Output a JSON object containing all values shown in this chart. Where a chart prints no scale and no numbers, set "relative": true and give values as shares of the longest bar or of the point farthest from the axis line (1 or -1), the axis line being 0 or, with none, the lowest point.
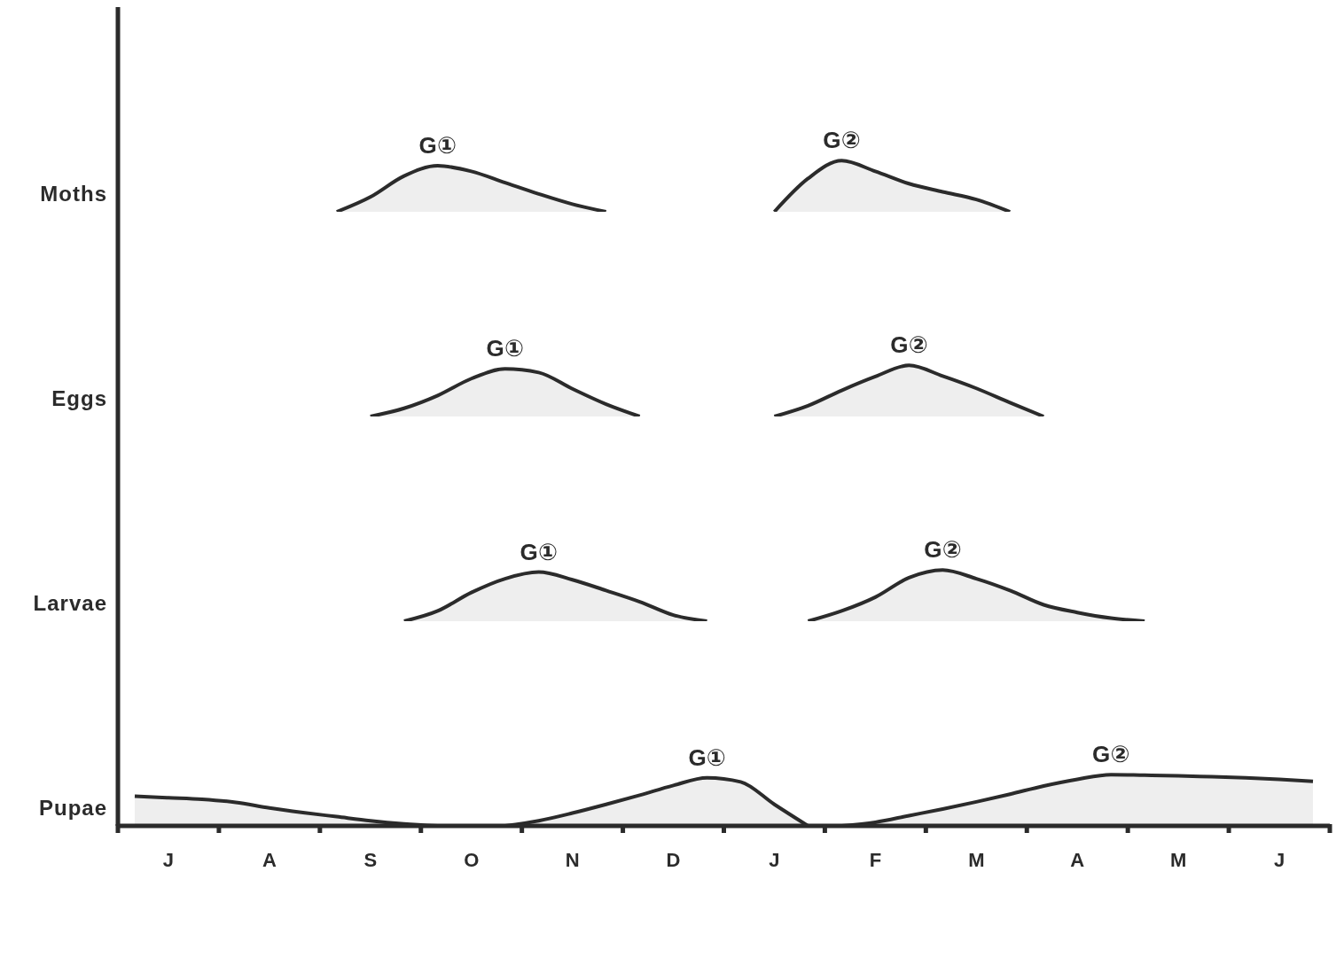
{
  "chart_data": [
    {
      "type": "area",
      "relative": true,
      "ylabel": "Moths",
      "tick_labels": false,
      "categories": [
        null,
        null,
        null,
        null,
        null,
        null,
        null,
        null,
        null,
        null,
        null,
        null,
        null,
        null,
        null,
        null,
        null,
        null,
        null,
        null,
        null,
        null,
        null,
        null,
        null,
        null,
        null,
        null,
        null,
        null,
        null,
        null,
        null,
        null,
        null,
        null
      ],
      "series": [
        {
          "color": "#2b2b2b",
          "values": [
            null,
            null,
            null,
            null,
            null,
            null,
            0,
            0.29,
            0.7,
            0.9,
            0.79,
            0.57,
            0.35,
            0.15,
            0,
            null,
            null,
            null,
            null,
            null,
            null,
            null,
            null,
            null,
            null,
            null,
            null,
            null,
            null,
            null,
            null,
            null,
            null,
            null,
            null,
            null
          ]
        },
        {
          "color": "#2b2b2b",
          "values": [
            null,
            null,
            null,
            null,
            null,
            null,
            null,
            null,
            null,
            null,
            null,
            null,
            null,
            null,
            null,
            null,
            null,
            null,
            null,
            0,
            0.65,
            1,
            0.79,
            0.55,
            0.39,
            0.24,
            0,
            null,
            null,
            null,
            null,
            null,
            null,
            null,
            null,
            null
          ]
        }
      ],
      "annotations": [
        "G①",
        "G②"
      ]
    },
    {
      "type": "area",
      "relative": true,
      "ylabel": "Eggs",
      "tick_labels": false,
      "categories": [
        null,
        null,
        null,
        null,
        null,
        null,
        null,
        null,
        null,
        null,
        null,
        null,
        null,
        null,
        null,
        null,
        null,
        null,
        null,
        null,
        null,
        null,
        null,
        null,
        null,
        null,
        null,
        null,
        null,
        null,
        null,
        null,
        null,
        null,
        null,
        null
      ],
      "series": [
        {
          "color": "#2b2b2b",
          "values": [
            null,
            null,
            null,
            null,
            null,
            null,
            null,
            0,
            0.16,
            0.41,
            0.74,
            0.93,
            0.86,
            0.54,
            0.24,
            0,
            null,
            null,
            null,
            null,
            null,
            null,
            null,
            null,
            null,
            null,
            null,
            null,
            null,
            null,
            null,
            null,
            null,
            null,
            null,
            null
          ]
        },
        {
          "color": "#2b2b2b",
          "values": [
            null,
            null,
            null,
            null,
            null,
            null,
            null,
            null,
            null,
            null,
            null,
            null,
            null,
            null,
            null,
            null,
            null,
            null,
            null,
            0,
            0.21,
            0.51,
            0.78,
            1,
            0.79,
            0.55,
            0.27,
            0,
            null,
            null,
            null,
            null,
            null,
            null,
            null,
            null
          ]
        }
      ],
      "annotations": [
        "G①",
        "G②"
      ]
    },
    {
      "type": "area",
      "relative": true,
      "ylabel": "Larvae",
      "tick_labels": false,
      "categories": [
        null,
        null,
        null,
        null,
        null,
        null,
        null,
        null,
        null,
        null,
        null,
        null,
        null,
        null,
        null,
        null,
        null,
        null,
        null,
        null,
        null,
        null,
        null,
        null,
        null,
        null,
        null,
        null,
        null,
        null,
        null,
        null,
        null,
        null,
        null,
        null
      ],
      "series": [
        {
          "color": "#2b2b2b",
          "values": [
            null,
            null,
            null,
            null,
            null,
            null,
            null,
            null,
            0,
            0.2,
            0.56,
            0.83,
            0.96,
            0.81,
            0.6,
            0.38,
            0.12,
            0,
            null,
            null,
            null,
            null,
            null,
            null,
            null,
            null,
            null,
            null,
            null,
            null,
            null,
            null,
            null,
            null,
            null,
            null
          ]
        },
        {
          "color": "#2b2b2b",
          "values": [
            null,
            null,
            null,
            null,
            null,
            null,
            null,
            null,
            null,
            null,
            null,
            null,
            null,
            null,
            null,
            null,
            null,
            null,
            null,
            null,
            0,
            0.2,
            0.47,
            0.85,
            1,
            0.83,
            0.6,
            0.32,
            0.17,
            0.06,
            0,
            null,
            null,
            null,
            null,
            null
          ]
        }
      ],
      "annotations": [
        "G①",
        "G②"
      ]
    },
    {
      "type": "area",
      "relative": true,
      "ylabel": "Pupae",
      "tick_labels": "x",
      "categories": [
        null,
        "J",
        null,
        null,
        "A",
        null,
        null,
        "S",
        null,
        null,
        "O",
        null,
        null,
        "N",
        null,
        null,
        "D",
        null,
        null,
        "J",
        null,
        null,
        "F",
        null,
        null,
        "M",
        null,
        null,
        "A",
        null,
        null,
        "M",
        null,
        null,
        "J",
        null
      ],
      "series": [
        {
          "color": "#2b2b2b",
          "values": [
            0.58,
            0.55,
            0.52,
            0.46,
            0.35,
            0.26,
            0.18,
            0.1,
            0.04,
            0,
            null,
            null,
            null,
            null,
            null,
            null,
            null,
            null,
            null,
            null,
            null,
            null,
            null,
            null,
            null,
            null,
            null,
            null,
            null,
            null,
            null,
            null,
            null,
            null,
            null,
            null
          ]
        },
        {
          "color": "#2b2b2b",
          "values": [
            null,
            null,
            null,
            null,
            null,
            null,
            null,
            null,
            null,
            null,
            null,
            0,
            0.1,
            0.25,
            0.42,
            0.6,
            0.79,
            0.94,
            0.86,
            0.42,
            0,
            null,
            null,
            null,
            null,
            null,
            null,
            null,
            null,
            null,
            null,
            null,
            null,
            null,
            null,
            null
          ]
        },
        {
          "color": "#2b2b2b",
          "values": [
            null,
            null,
            null,
            null,
            null,
            null,
            null,
            null,
            null,
            null,
            null,
            null,
            null,
            null,
            null,
            null,
            null,
            null,
            null,
            null,
            null,
            0,
            0.07,
            0.2,
            0.33,
            0.47,
            0.62,
            0.78,
            0.91,
            1,
            0.99,
            0.98,
            0.96,
            0.94,
            0.91,
            0.87
          ]
        }
      ],
      "annotations": [
        "G①",
        "G②"
      ]
    }
  ]
}
